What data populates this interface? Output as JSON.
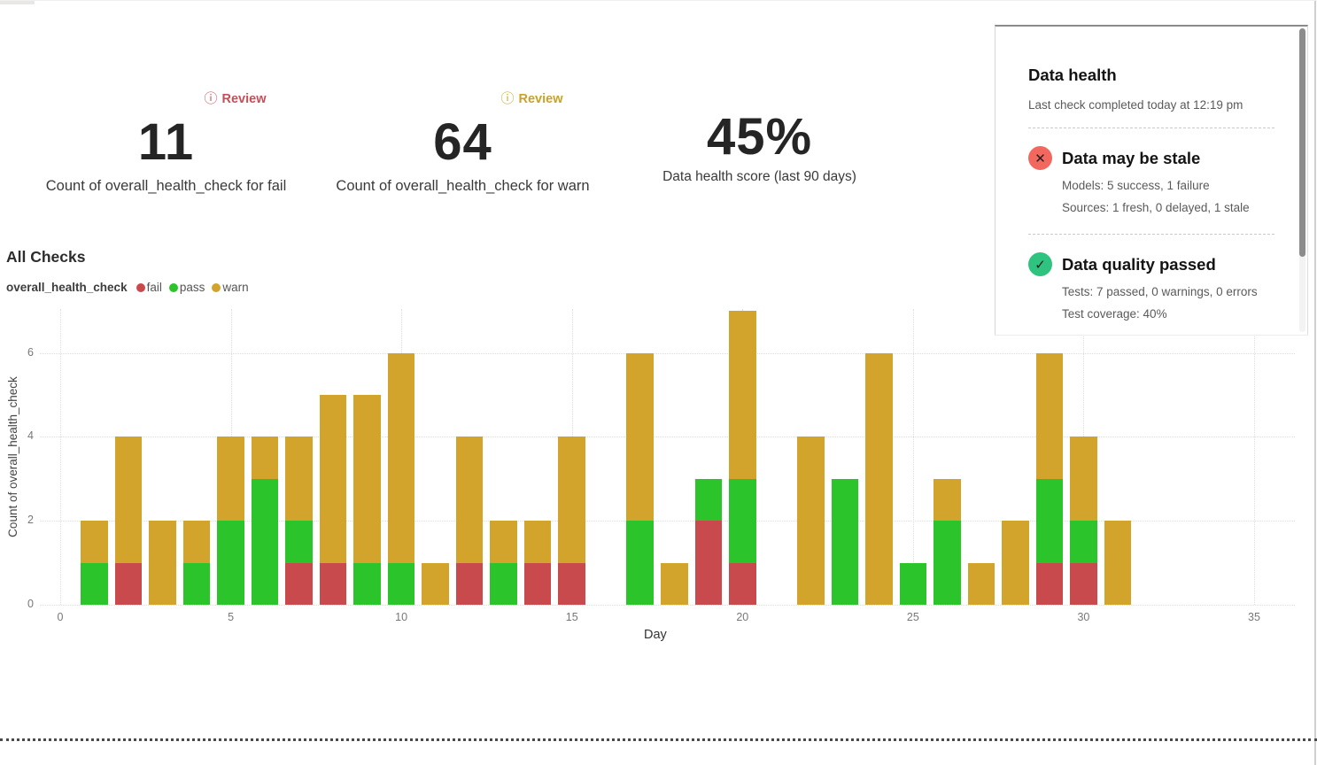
{
  "metrics": [
    {
      "badge": {
        "label": "Review",
        "icon": "info-circle-icon",
        "color": "#c74e57"
      },
      "value": "11",
      "label": "Count of overall_health_check for fail"
    },
    {
      "badge": {
        "label": "Review",
        "icon": "info-circle-icon",
        "color": "#c9a227"
      },
      "value": "64",
      "label": "Count of overall_health_check for warn"
    },
    {
      "value": "45%",
      "label": "Data health score (last 90 days)"
    }
  ],
  "all_checks": {
    "title": "All Checks",
    "series_name": "overall_health_check",
    "legend": [
      {
        "label": "fail",
        "color": "#c94a4c"
      },
      {
        "label": "pass",
        "color": "#2bc42b"
      },
      {
        "label": "warn",
        "color": "#d3a42b"
      }
    ]
  },
  "chart_data": {
    "type": "bar",
    "stacked": true,
    "title": "All Checks",
    "xlabel": "Day",
    "ylabel": "Count of overall_health_check",
    "xlim": [
      0,
      35
    ],
    "ylim": [
      0,
      7
    ],
    "x_ticks": [
      0,
      5,
      10,
      15,
      20,
      25,
      30,
      35
    ],
    "y_ticks": [
      0,
      2,
      4,
      6
    ],
    "grid": true,
    "legend_position": "top-left",
    "x": [
      1,
      2,
      3,
      4,
      5,
      6,
      7,
      8,
      9,
      10,
      11,
      12,
      13,
      14,
      15,
      16,
      17,
      18,
      19,
      20,
      21,
      22,
      23,
      24,
      25,
      26,
      27,
      28,
      29,
      30,
      31
    ],
    "series": [
      {
        "name": "fail",
        "color": "#c94a4c",
        "values": [
          0,
          1,
          0,
          0,
          0,
          0,
          1,
          1,
          0,
          0,
          0,
          1,
          0,
          1,
          1,
          0,
          0,
          0,
          2,
          1,
          0,
          0,
          0,
          0,
          0,
          0,
          0,
          0,
          1,
          1,
          0
        ]
      },
      {
        "name": "pass",
        "color": "#2bc42b",
        "values": [
          1,
          0,
          0,
          1,
          2,
          3,
          1,
          0,
          1,
          1,
          0,
          0,
          1,
          0,
          0,
          0,
          2,
          0,
          1,
          2,
          0,
          0,
          3,
          0,
          1,
          2,
          0,
          0,
          2,
          1,
          0
        ]
      },
      {
        "name": "warn",
        "color": "#d3a42b",
        "values": [
          1,
          3,
          2,
          1,
          2,
          1,
          2,
          4,
          4,
          5,
          1,
          3,
          1,
          1,
          3,
          0,
          4,
          1,
          0,
          4,
          0,
          4,
          0,
          6,
          0,
          1,
          1,
          2,
          3,
          2,
          2
        ]
      }
    ]
  },
  "data_health_panel": {
    "title": "Data health",
    "subtitle": "Last check completed today at 12:19 pm",
    "items": [
      {
        "icon": "x-circle-icon",
        "glyph": "✕",
        "color": "#f2685e",
        "title": "Data may be stale",
        "lines": [
          "Models: 5 success, 1 failure",
          "Sources: 1 fresh, 0 delayed, 1 stale"
        ]
      },
      {
        "icon": "check-circle-icon",
        "glyph": "✓",
        "color": "#2fc380",
        "title": "Data quality passed",
        "lines": [
          "Tests: 7 passed, 0 warnings, 0 errors",
          "Test coverage: 40%"
        ]
      }
    ]
  }
}
